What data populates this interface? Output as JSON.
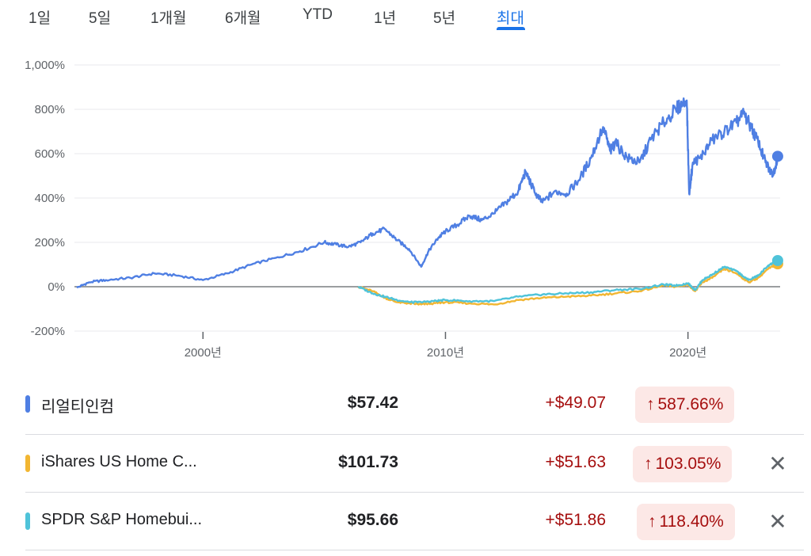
{
  "tabs": [
    {
      "label": "1일",
      "active": false
    },
    {
      "label": "5일",
      "active": false
    },
    {
      "label": "1개월",
      "active": false
    },
    {
      "label": "6개월",
      "active": false
    },
    {
      "label": "YTD",
      "active": false
    },
    {
      "label": "1년",
      "active": false
    },
    {
      "label": "5년",
      "active": false
    },
    {
      "label": "최대",
      "active": true
    }
  ],
  "colors": {
    "accent": "#1a73e8",
    "series_blue": "#4f7fe3",
    "series_yellow": "#f2b632",
    "series_cyan": "#4fc3d9",
    "negative_bg": "#fce8e6",
    "negative_text": "#a50e0e",
    "zero_line": "#5f6368",
    "grid": "#e8eaed"
  },
  "chart_data": {
    "type": "line",
    "y_unit": "%",
    "ylim": [
      -200,
      1000
    ],
    "y_ticks": [
      1000,
      800,
      600,
      400,
      200,
      0,
      -200
    ],
    "y_tick_labels": [
      "1,000%",
      "800%",
      "600%",
      "400%",
      "200%",
      "0%",
      "-200%"
    ],
    "x_ticks": [
      2000,
      2010,
      2020
    ],
    "x_tick_labels": [
      "2000년",
      "2010년",
      "2020년"
    ],
    "xlim": [
      1994.7,
      2023.8
    ],
    "grid": true,
    "series": [
      {
        "name": "리얼티인컴",
        "color": "#4f7fe3",
        "x": [
          1994.8,
          1995.3,
          1996,
          1997,
          1998,
          1999,
          2000,
          2001,
          2002,
          2003,
          2004,
          2005,
          2005.5,
          2006,
          2006.5,
          2007,
          2007.5,
          2008,
          2008.5,
          2009,
          2009.3,
          2009.7,
          2010,
          2010.5,
          2011,
          2011.5,
          2012,
          2012.5,
          2013,
          2013.3,
          2013.7,
          2014,
          2014.5,
          2015,
          2015.5,
          2016,
          2016.5,
          2016.8,
          2017,
          2017.5,
          2018,
          2018.5,
          2019,
          2019.5,
          2019.95,
          2020.05,
          2020.2,
          2020.5,
          2021,
          2021.5,
          2022,
          2022.3,
          2022.6,
          2022.9,
          2023.2,
          2023.5,
          2023.7
        ],
        "y": [
          -5,
          20,
          30,
          40,
          60,
          50,
          30,
          60,
          100,
          130,
          160,
          200,
          190,
          180,
          200,
          240,
          260,
          210,
          170,
          90,
          160,
          220,
          250,
          280,
          320,
          300,
          330,
          380,
          430,
          520,
          420,
          380,
          430,
          420,
          480,
          580,
          720,
          610,
          650,
          580,
          560,
          670,
          740,
          800,
          840,
          420,
          560,
          580,
          660,
          700,
          740,
          780,
          720,
          650,
          560,
          500,
          588
        ]
      },
      {
        "name": "iShares US Home C...",
        "color": "#f2b632",
        "x": [
          2006.4,
          2007,
          2007.5,
          2008,
          2008.5,
          2009,
          2009.5,
          2010,
          2011,
          2012,
          2013,
          2014,
          2015,
          2016,
          2017,
          2018,
          2019,
          2019.5,
          2020,
          2020.3,
          2020.6,
          2021,
          2021.5,
          2022,
          2022.5,
          2022.9,
          2023.3,
          2023.7
        ],
        "y": [
          0,
          -20,
          -50,
          -70,
          -75,
          -80,
          -75,
          -70,
          -75,
          -80,
          -60,
          -50,
          -45,
          -40,
          -30,
          -20,
          5,
          0,
          10,
          -20,
          20,
          40,
          80,
          60,
          20,
          40,
          80,
          103
        ]
      },
      {
        "name": "SPDR S&P Homebui...",
        "color": "#4fc3d9",
        "x": [
          2006.4,
          2007,
          2007.5,
          2008,
          2008.5,
          2009,
          2009.5,
          2010,
          2011,
          2012,
          2013,
          2014,
          2015,
          2016,
          2017,
          2018,
          2019,
          2019.5,
          2020,
          2020.3,
          2020.6,
          2021,
          2021.5,
          2022,
          2022.5,
          2022.9,
          2023.3,
          2023.7
        ],
        "y": [
          0,
          -30,
          -45,
          -60,
          -70,
          -70,
          -65,
          -60,
          -65,
          -65,
          -45,
          -35,
          -30,
          -25,
          -15,
          -10,
          10,
          5,
          15,
          -15,
          30,
          55,
          90,
          70,
          30,
          50,
          95,
          118
        ]
      }
    ]
  },
  "rows": [
    {
      "name": "리얼티인컴",
      "price": "$57.42",
      "change": "+$49.07",
      "arrow": "↑",
      "pct": "587.66%",
      "color": "#4f7fe3",
      "removable": false
    },
    {
      "name": "iShares US Home C...",
      "price": "$101.73",
      "change": "+$51.63",
      "arrow": "↑",
      "pct": "103.05%",
      "color": "#f2b632",
      "removable": true,
      "close_glyph": "✕"
    },
    {
      "name": "SPDR S&P Homebui...",
      "price": "$95.66",
      "change": "+$51.86",
      "arrow": "↑",
      "pct": "118.40%",
      "color": "#4fc3d9",
      "removable": true,
      "close_glyph": "✕"
    }
  ]
}
